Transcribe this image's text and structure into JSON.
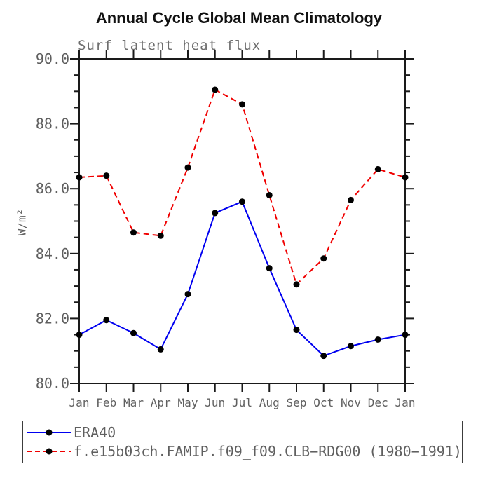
{
  "chart_data": {
    "type": "line",
    "title": "Annual Cycle Global Mean Climatology",
    "subtitle": "Surf latent heat flux",
    "ylabel": "W/m²",
    "xlabel": "",
    "categories": [
      "Jan",
      "Feb",
      "Mar",
      "Apr",
      "May",
      "Jun",
      "Jul",
      "Aug",
      "Sep",
      "Oct",
      "Nov",
      "Dec",
      "Jan"
    ],
    "ylim": [
      80.0,
      90.0
    ],
    "ytick_major": 2.0,
    "ytick_minor": 0.5,
    "ytick_labels": [
      "80.0",
      "82.0",
      "84.0",
      "86.0",
      "88.0",
      "90.0"
    ],
    "grid": false,
    "legend_position": "bottom",
    "series": [
      {
        "name": "ERA40",
        "color": "#0000f0",
        "line_style": "solid",
        "marker": "filled-circle",
        "marker_color": "#000000",
        "values": [
          81.5,
          81.95,
          81.55,
          81.05,
          82.75,
          85.25,
          85.6,
          83.55,
          81.65,
          80.85,
          81.15,
          81.35,
          81.5
        ]
      },
      {
        "name": "f.e15b03ch.FAMIP.f09_f09.CLB−RDG00 (1980−1991)",
        "color": "#f00000",
        "line_style": "dashed",
        "marker": "filled-circle",
        "marker_color": "#000000",
        "values": [
          86.35,
          86.4,
          84.65,
          84.55,
          86.65,
          89.05,
          88.6,
          85.8,
          83.05,
          83.85,
          85.65,
          86.6,
          86.35
        ]
      }
    ],
    "colors": {
      "axis": "#1a1a1a",
      "tick_text": "#5f5f5f",
      "title_text": "#111111",
      "subtitle_text": "#6e6e6e"
    }
  }
}
